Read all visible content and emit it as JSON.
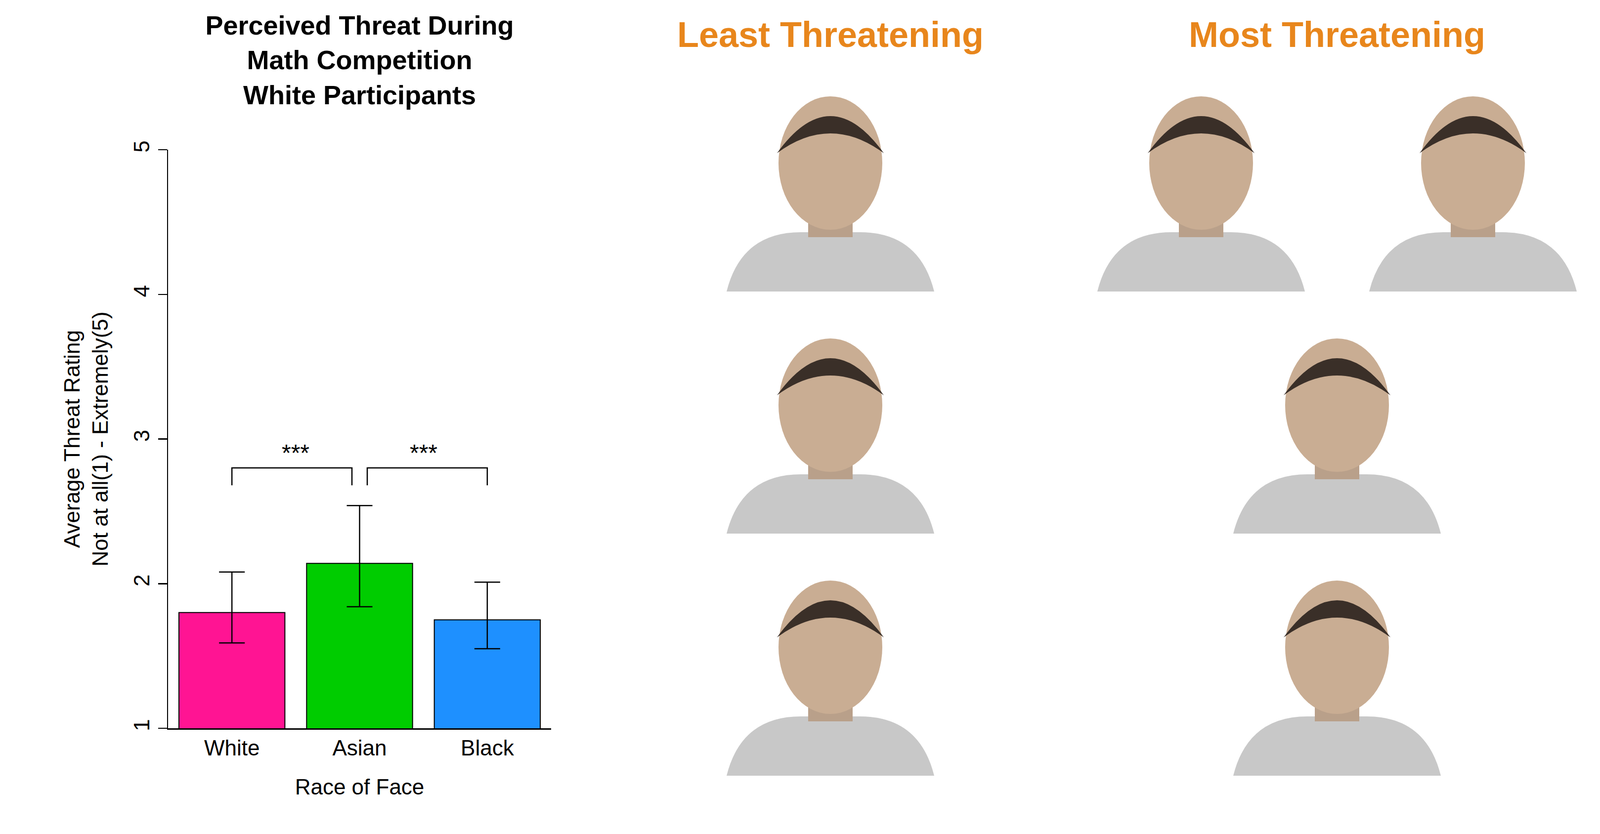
{
  "chart_data": {
    "type": "bar",
    "title": "Perceived Threat During\nMath Competition\nWhite Participants",
    "x_label": "Race of Face",
    "y_label": "Average Threat Rating\nNot at all(1) - Extremely(5)",
    "categories": [
      "White",
      "Asian",
      "Black"
    ],
    "values": [
      1.8,
      2.14,
      1.75
    ],
    "error_plus": [
      0.28,
      0.4,
      0.26
    ],
    "error_minus": [
      0.21,
      0.3,
      0.2
    ],
    "colors": [
      "#ff1493",
      "#00cc00",
      "#1e90ff"
    ],
    "ylim": [
      1,
      5
    ],
    "yticks": [
      1,
      2,
      3,
      4,
      5
    ],
    "grid": false,
    "annotations": [
      {
        "text": "***",
        "from": "White",
        "to": "Asian",
        "y": 2.8
      },
      {
        "text": "***",
        "from": "Asian",
        "to": "Black",
        "y": 2.8
      }
    ]
  },
  "panels": {
    "least": {
      "heading": "Least Threatening"
    },
    "most": {
      "heading": "Most Threatening"
    }
  }
}
